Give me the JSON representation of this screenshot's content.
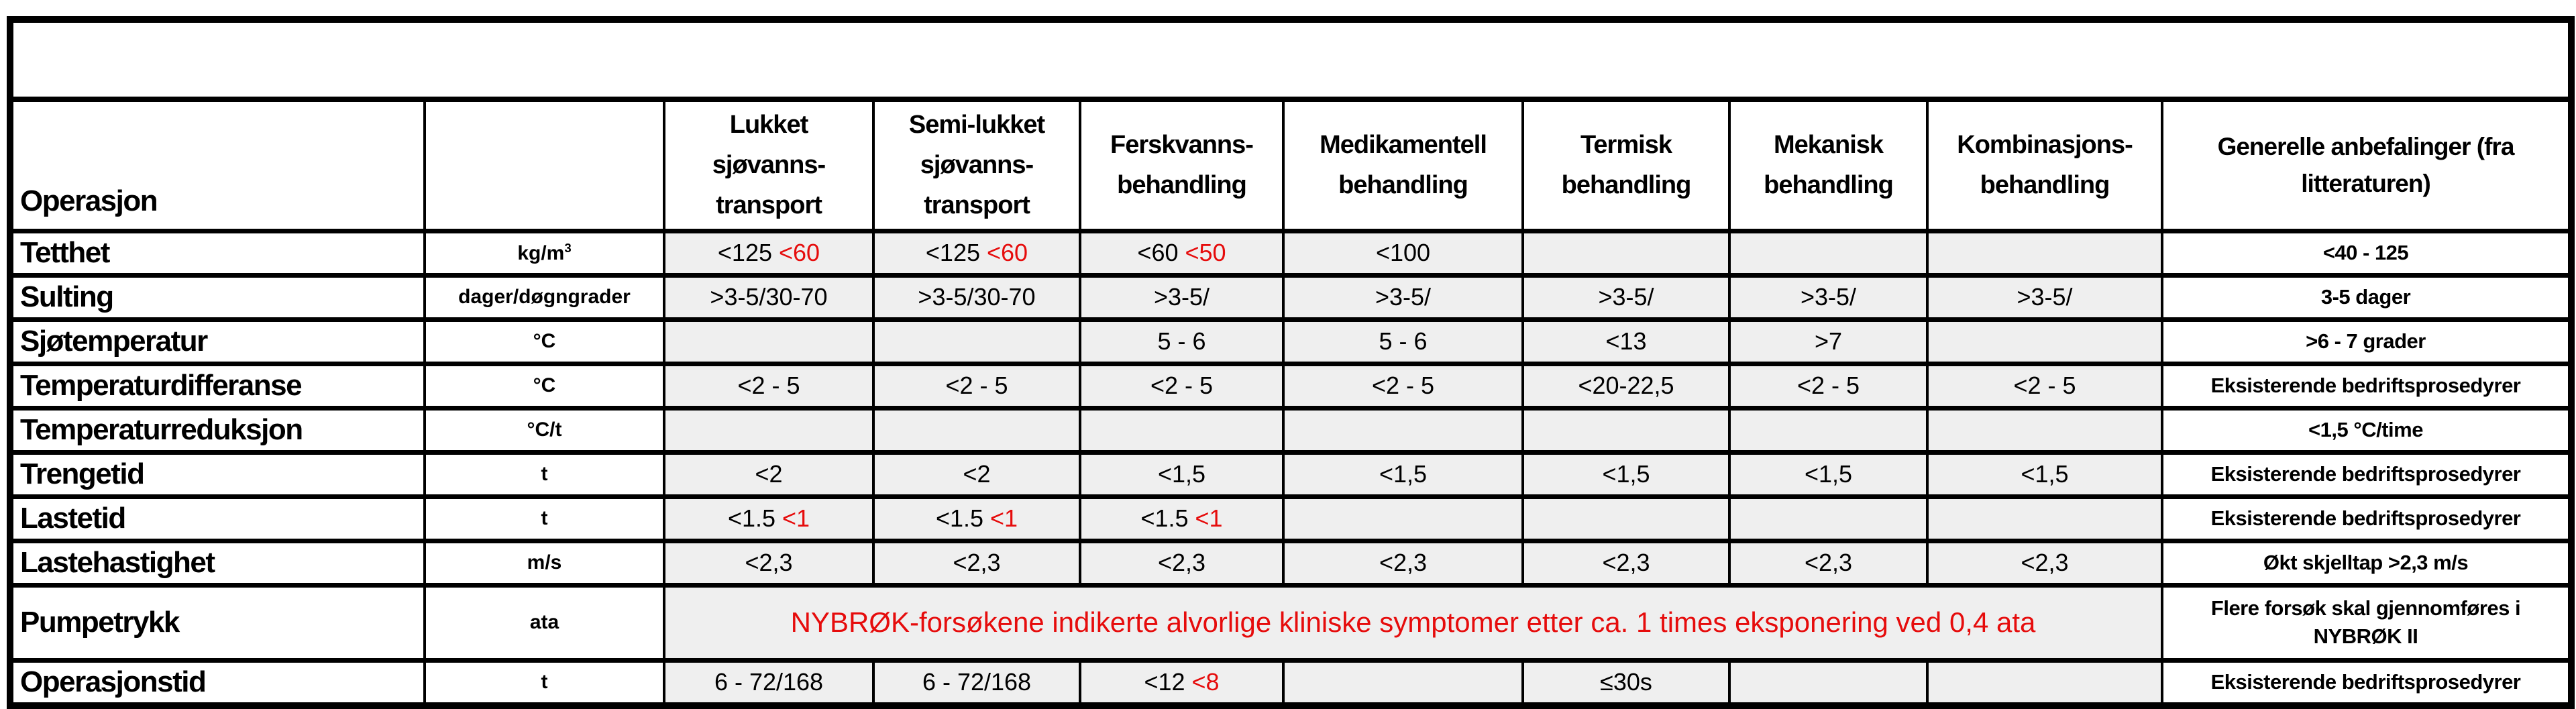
{
  "title_band": "",
  "colors": {
    "accent_red": "#e60c0c",
    "cell_gray": "#efefef",
    "border_black": "#000000"
  },
  "table": {
    "corner": {
      "operation": "Operasjon",
      "unit": ""
    },
    "columns": [
      {
        "label": "Lukket\nsjøvanns-\ntransport"
      },
      {
        "label": "Semi-lukket\nsjøvanns-\ntransport"
      },
      {
        "label": "Ferskvanns-\nbehandling"
      },
      {
        "label": "Medikamentell\nbehandling"
      },
      {
        "label": "Termisk\nbehandling"
      },
      {
        "label": "Mekanisk\nbehandling"
      },
      {
        "label": "Kombinasjons-\nbehandling"
      },
      {
        "label": "Generelle anbefalinger (fra\nlitteraturen)"
      }
    ],
    "rows": [
      {
        "label": "Tetthet",
        "unit": "kg/m",
        "unit_sup": "3",
        "cells": [
          {
            "b": "<125",
            "r": "<60"
          },
          {
            "b": "<125",
            "r": "<60"
          },
          {
            "b": "<60",
            "r": "<50"
          },
          {
            "b": "<100"
          },
          {},
          {},
          {}
        ],
        "rec": "<40 - 125"
      },
      {
        "label": "Sulting",
        "unit": "dager/døgngrader",
        "cells": [
          {
            "b": ">3-5/30-70"
          },
          {
            "b": ">3-5/30-70"
          },
          {
            "b": ">3-5/"
          },
          {
            "b": ">3-5/"
          },
          {
            "b": ">3-5/"
          },
          {
            "b": ">3-5/"
          },
          {
            "b": ">3-5/"
          }
        ],
        "rec": "3-5 dager"
      },
      {
        "label": "Sjøtemperatur",
        "unit": "°C",
        "cells": [
          {},
          {},
          {
            "b": "5 - 6"
          },
          {
            "b": "5 - 6"
          },
          {
            "b": "<13"
          },
          {
            "b": ">7"
          },
          {}
        ],
        "rec": ">6 - 7 grader"
      },
      {
        "label": "Temperaturdifferanse",
        "unit": "°C",
        "cells": [
          {
            "b": "<2 - 5"
          },
          {
            "b": "<2 - 5"
          },
          {
            "b": "<2 - 5"
          },
          {
            "b": "<2 - 5"
          },
          {
            "b": "<20-22,5"
          },
          {
            "b": "<2 - 5"
          },
          {
            "b": "<2 - 5"
          }
        ],
        "rec": "Eksisterende bedriftsprosedyrer"
      },
      {
        "label": "Temperaturreduksjon",
        "unit": "°C/t",
        "cells": [
          {},
          {},
          {},
          {},
          {},
          {},
          {}
        ],
        "rec": "<1,5 °C/time"
      },
      {
        "label": "Trengetid",
        "unit": "t",
        "cells": [
          {
            "b": "<2"
          },
          {
            "b": "<2"
          },
          {
            "b": "<1,5"
          },
          {
            "b": "<1,5"
          },
          {
            "b": "<1,5"
          },
          {
            "b": "<1,5"
          },
          {
            "b": "<1,5"
          }
        ],
        "rec": "Eksisterende bedriftsprosedyrer"
      },
      {
        "label": "Lastetid",
        "unit": "t",
        "cells": [
          {
            "b": "<1.5",
            "r": "<1"
          },
          {
            "b": "<1.5",
            "r": "<1"
          },
          {
            "b": "<1.5",
            "r": "<1"
          },
          {},
          {},
          {},
          {}
        ],
        "rec": "Eksisterende bedriftsprosedyrer"
      },
      {
        "label": "Lastehastighet",
        "unit": "m/s",
        "cells": [
          {
            "b": "<2,3"
          },
          {
            "b": "<2,3"
          },
          {
            "b": "<2,3"
          },
          {
            "b": "<2,3"
          },
          {
            "b": "<2,3"
          },
          {
            "b": "<2,3"
          },
          {
            "b": "<2,3"
          }
        ],
        "rec": "Økt skjelltap >2,3 m/s"
      },
      {
        "label": "Pumpetrykk",
        "unit": "ata",
        "merged": "NYBRØK-forsøkene indikerte alvorlige kliniske symptomer etter ca. 1 times eksponering ved 0,4 ata",
        "rec": "Flere forsøk skal gjennomføres i\nNYBRØK II"
      },
      {
        "label": "Operasjonstid",
        "unit": "t",
        "cells": [
          {
            "b": "6 - 72/168"
          },
          {
            "b": "6 - 72/168"
          },
          {
            "b": "<12",
            "r": "<8"
          },
          {},
          {
            "b": "≤30s"
          },
          {},
          {}
        ],
        "rec": "Eksisterende bedriftsprosedyrer"
      }
    ]
  }
}
